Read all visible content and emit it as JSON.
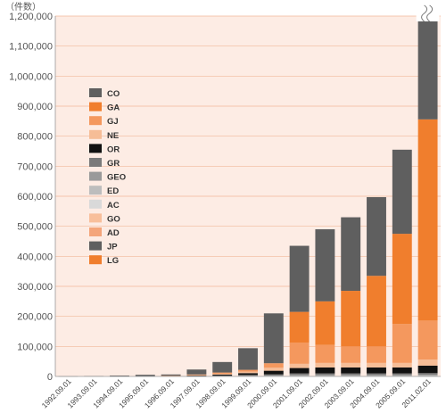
{
  "chart_data": {
    "type": "bar",
    "stacked": true,
    "unit_label": "（件数）",
    "categories": [
      "1992.09.01",
      "1993.09.01",
      "1994.09.01",
      "1995.09.01",
      "1996.09.01",
      "1997.09.01",
      "1998.09.01",
      "1999.09.01",
      "2000.09.01",
      "2001.09.01",
      "2002.09.01",
      "2003.09.01",
      "2004.09.01",
      "2005.09.01",
      "2011.02.01"
    ],
    "ylim": [
      0,
      1200000
    ],
    "yticks": [
      0,
      100000,
      200000,
      300000,
      400000,
      500000,
      600000,
      700000,
      800000,
      900000,
      1000000,
      1100000,
      1200000
    ],
    "ytick_labels": [
      "0",
      "100,000",
      "200,000",
      "300,000",
      "400,000",
      "500,000",
      "600,000",
      "700,000",
      "800,000",
      "900,000",
      "1,000,000",
      "1,100,000",
      "1,200,000"
    ],
    "axis_break_on_last_bar": true,
    "grid": true,
    "legend_position": "left",
    "legend_order": [
      "CO",
      "GA",
      "GJ",
      "NE",
      "OR",
      "GR",
      "GEO",
      "ED",
      "AC",
      "GO",
      "AD",
      "JP",
      "LG"
    ],
    "plot_background": "#fdece4",
    "series": [
      {
        "name": "LG",
        "color": "#f07e2d",
        "values": [
          0,
          0,
          0,
          0,
          0,
          0,
          0,
          0,
          0,
          0,
          0,
          0,
          0,
          0,
          0
        ]
      },
      {
        "name": "JP",
        "color": "#5f5f5f",
        "values": [
          0,
          0,
          0,
          0,
          0,
          0,
          0,
          0,
          0,
          0,
          0,
          0,
          0,
          0,
          0
        ]
      },
      {
        "name": "AD",
        "color": "#f4a57a",
        "values": [
          0,
          0,
          0,
          0,
          0,
          0,
          0,
          0,
          0,
          0,
          0,
          0,
          0,
          0,
          0
        ]
      },
      {
        "name": "GO",
        "color": "#f8bf9b",
        "values": [
          0,
          0,
          0,
          0,
          0,
          0,
          0,
          0,
          0,
          0,
          0,
          0,
          0,
          0,
          0
        ]
      },
      {
        "name": "AC",
        "color": "#d9d9d9",
        "values": [
          0,
          0,
          0,
          0,
          0,
          0,
          0,
          0,
          0,
          0,
          0,
          0,
          0,
          0,
          0
        ]
      },
      {
        "name": "ED",
        "color": "#bdbdbd",
        "values": [
          200,
          300,
          400,
          500,
          800,
          1000,
          1500,
          2000,
          3000,
          4000,
          4000,
          4000,
          4000,
          4000,
          5000
        ]
      },
      {
        "name": "GEO",
        "color": "#9a9a9a",
        "values": [
          0,
          0,
          0,
          0,
          0,
          0,
          0,
          0,
          0,
          0,
          0,
          0,
          0,
          0,
          0
        ]
      },
      {
        "name": "GR",
        "color": "#7a7a7a",
        "values": [
          0,
          0,
          0,
          0,
          300,
          800,
          1500,
          3000,
          4000,
          6000,
          6000,
          6000,
          6000,
          6000,
          6000
        ]
      },
      {
        "name": "OR",
        "color": "#111111",
        "values": [
          0,
          0,
          0,
          0,
          500,
          1500,
          3000,
          6000,
          12000,
          18000,
          20000,
          20000,
          20000,
          20000,
          25000
        ]
      },
      {
        "name": "NE",
        "color": "#f6bd97",
        "values": [
          0,
          0,
          0,
          0,
          500,
          1200,
          3000,
          5000,
          10000,
          14000,
          15000,
          15000,
          15000,
          15000,
          20000
        ]
      },
      {
        "name": "GJ",
        "color": "#f4985e",
        "values": [
          0,
          0,
          0,
          0,
          700,
          2000,
          4000,
          6000,
          15000,
          70000,
          60000,
          55000,
          55000,
          130000,
          130000
        ]
      },
      {
        "name": "GA",
        "color": "#f07e2d",
        "values": [
          0,
          0,
          0,
          0,
          0,
          0,
          0,
          0,
          0,
          103000,
          145000,
          185000,
          235000,
          300000,
          670000
        ]
      },
      {
        "name": "CO",
        "color": "#5f5f5f",
        "values": [
          300,
          1200,
          2600,
          5000,
          3700,
          16500,
          35000,
          72000,
          166000,
          220000,
          240000,
          245000,
          262000,
          280000,
          345000
        ]
      }
    ],
    "legend_colors": {
      "CO": "#5f5f5f",
      "GA": "#f07e2d",
      "GJ": "#f4985e",
      "NE": "#f6bd97",
      "OR": "#111111",
      "GR": "#7a7a7a",
      "GEO": "#9a9a9a",
      "ED": "#bdbdbd",
      "AC": "#d9d9d9",
      "GO": "#f8bf9b",
      "AD": "#f4a57a",
      "JP": "#5f5f5f",
      "LG": "#f07e2d"
    }
  }
}
